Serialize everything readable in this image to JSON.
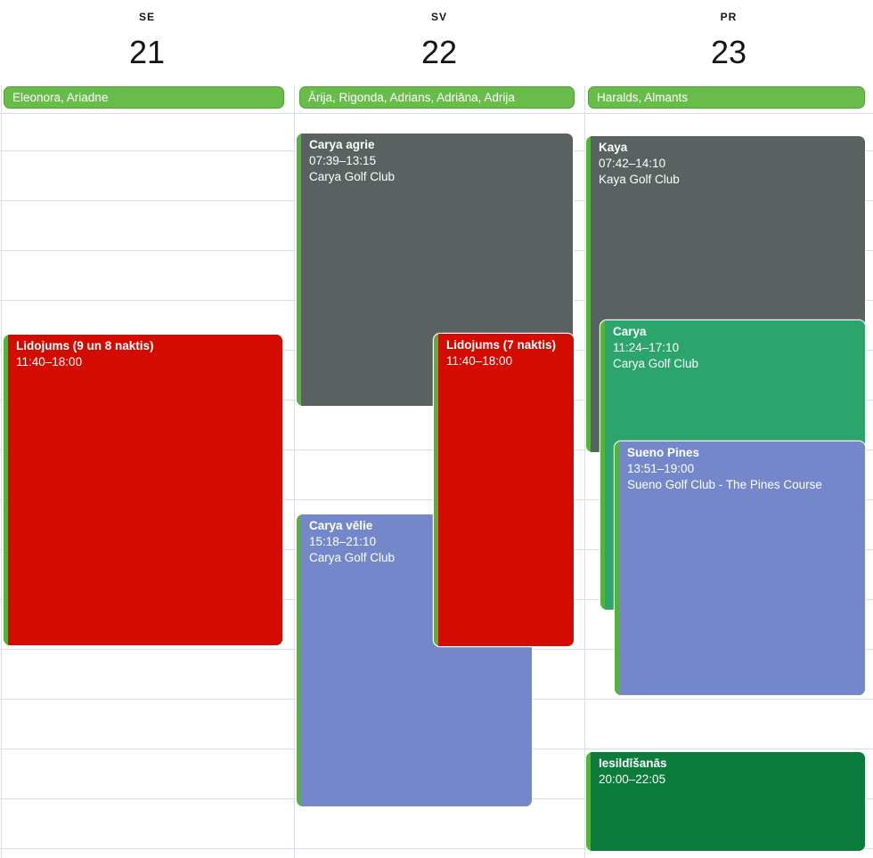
{
  "calendar": {
    "days": [
      {
        "abbr": "SE",
        "number": "21",
        "all_day_event": "Eleonora, Ariadne"
      },
      {
        "abbr": "SV",
        "number": "22",
        "all_day_event": "Ārija, Rigonda, Adrians, Adriāna, Adrija"
      },
      {
        "abbr": "PR",
        "number": "23",
        "all_day_event": "Haralds, Almants"
      }
    ],
    "events": [
      {
        "day": "21",
        "title": "Lidojums (9 un 8 naktis)",
        "time": "11:40–18:00",
        "location": "",
        "color": "red"
      },
      {
        "day": "22",
        "title": "Carya agrie",
        "time": "07:39–13:15",
        "location": "Carya Golf Club",
        "color": "gray"
      },
      {
        "day": "22",
        "title": "Carya vēlie",
        "time": "15:18–21:10",
        "location": "Carya Golf Club",
        "color": "blue"
      },
      {
        "day": "22",
        "title": "Lidojums (7 naktis)",
        "time": "11:40–18:00",
        "location": "",
        "color": "red"
      },
      {
        "day": "23",
        "title": "Kaya",
        "time": "07:42–14:10",
        "location": "Kaya Golf Club",
        "color": "gray"
      },
      {
        "day": "23",
        "title": "Carya",
        "time": "11:24–17:10",
        "location": "Carya Golf Club",
        "color": "emerald"
      },
      {
        "day": "23",
        "title": "Sueno Pines",
        "time": "13:51–19:00",
        "location": "Sueno Golf Club - The Pines Course",
        "color": "blue"
      },
      {
        "day": "23",
        "title": "Iesildīšanās",
        "time": "20:00–22:05",
        "location": "",
        "color": "dark_green"
      }
    ],
    "colors": {
      "red": "#d30b00",
      "gray": "#5a6161",
      "blue": "#7487cb",
      "emerald": "#2ba56b",
      "dark_green": "#0c7c3c",
      "calendar_stripe": "#55b33b",
      "all_day_fill": "#68bc49",
      "all_day_border": "#4fa233",
      "grid_line": "#d6deeb",
      "event_text": "#ffffff",
      "header_text": "#141414"
    }
  }
}
